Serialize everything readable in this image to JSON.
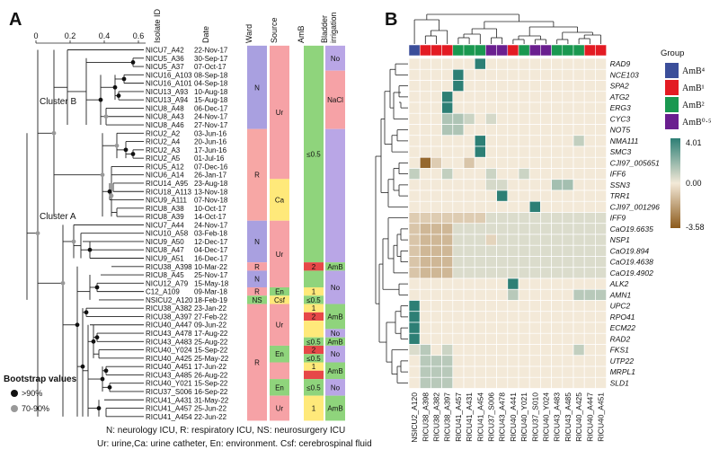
{
  "panelA": {
    "label": "A",
    "axis_ticks": [
      "0",
      "0.2",
      "0.4",
      "0.6"
    ],
    "cluster_b": "Cluster B",
    "cluster_a": "Cluster A",
    "headers": {
      "isolate": "Isolate ID",
      "date": "Date",
      "ward": "Ward",
      "source": "Source",
      "amb": "AmB",
      "bladder": "Bladder irrigation"
    },
    "isolates": [
      [
        "NICU7_A42",
        "22-Nov-17"
      ],
      [
        "NICU5_A36",
        "30-Sep-17"
      ],
      [
        "NICU5_A37",
        "07-Oct-17"
      ],
      [
        "NICU16_A103",
        "08-Sep-18"
      ],
      [
        "NICU16_A101",
        "04-Sep-18"
      ],
      [
        "NICU13_A93",
        "10-Aug-18"
      ],
      [
        "NICU13_A94",
        "15-Aug-18"
      ],
      [
        "NICU8_A48",
        "06-Dec-17"
      ],
      [
        "NICU8_A43",
        "24-Nov-17"
      ],
      [
        "NICU8_A46",
        "27-Nov-17"
      ],
      [
        "RICU2_A2",
        "03-Jun-16"
      ],
      [
        "RICU2_A4",
        "20-Jun-16"
      ],
      [
        "RICU2_A3",
        "17-Jun-16"
      ],
      [
        "RICU2_A5",
        "01-Jul-16"
      ],
      [
        "RICU5_A12",
        "07-Dec-16"
      ],
      [
        "NICU6_A14",
        "26-Jan-17"
      ],
      [
        "RICU14_A95",
        "23-Aug-18"
      ],
      [
        "RICU18_A113",
        "13-Nov-18"
      ],
      [
        "NICU9_A111",
        "07-Nov-18"
      ],
      [
        "RICU8_A38",
        "10-Oct-17"
      ],
      [
        "RICU8_A39",
        "14-Oct-17"
      ],
      [
        "NICU7_A44",
        "24-Nov-17"
      ],
      [
        "NICU10_A58",
        "03-Feb-18"
      ],
      [
        "NICU9_A50",
        "12-Dec-17"
      ],
      [
        "NICU8_A47",
        "04-Dec-17"
      ],
      [
        "NICU9_A51",
        "16-Dec-17"
      ],
      [
        "RICU38_A398",
        "10-Mar-22"
      ],
      [
        "RICU8_A45",
        "25-Nov-17"
      ],
      [
        "NICU12_A79",
        "15-May-18"
      ],
      [
        "C12_A109",
        "09-Mar-18"
      ],
      [
        "NSICU2_A120",
        "18-Feb-19"
      ],
      [
        "RICU38_A382",
        "23-Jan-22"
      ],
      [
        "RICU38_A397",
        "27-Feb-22"
      ],
      [
        "RICU40_A447",
        "09-Jun-22"
      ],
      [
        "RICU43_A478",
        "17-Aug-22"
      ],
      [
        "RICU43_A483",
        "25-Aug-22"
      ],
      [
        "RICU40_Y024",
        "15-Sep-22"
      ],
      [
        "RICU40_A425",
        "25-May-22"
      ],
      [
        "RICU40_A451",
        "17-Jun-22"
      ],
      [
        "RICU43_A485",
        "26-Aug-22"
      ],
      [
        "RICU40_Y021",
        "15-Sep-22"
      ],
      [
        "RICU37_S006",
        "16-Sep-22"
      ],
      [
        "RICU41_A431",
        "31-May-22"
      ],
      [
        "RICU41_A457",
        "25-Jun-22"
      ],
      [
        "RICU41_A454",
        "22-Jun-22"
      ]
    ],
    "ward_labels": {
      "n1": "N",
      "r1": "R",
      "n2": "N",
      "r2": "R",
      "n3": "N",
      "r3": "R",
      "en1": "R",
      "ns": "NS",
      "r4": "R"
    },
    "source_labels": {
      "ur1": "Ur",
      "ca": "Ca",
      "ur2": "Ur",
      "en1": "En",
      "csf": "Csf",
      "ur3": "Ur",
      "en2": "En",
      "en3": "En",
      "ur4": "Ur"
    },
    "amb_labels": {
      "le05": "≤0.5",
      "a2": "2",
      "a1": "1",
      "le05b": "≤0.5",
      "a1b": "1",
      "a2b": "2",
      "a2c": "2",
      "le05c": "≤0.5",
      "a1c": "1",
      "le05d": "≤0.5",
      "a1d": "1",
      "le05e": "≤0.5"
    },
    "bladder_labels": {
      "no1": "No",
      "nacl": "NaCl",
      "amb1": "AmB",
      "no2": "No",
      "amb2": "AmB",
      "no3": "No",
      "amb3": "AmB",
      "no4": "No",
      "amb4": "AmB",
      "no5": "No",
      "amb5": "AmB"
    },
    "bootstrap_title": "Bootstrap values",
    "bootstrap_hi": ">90%",
    "bootstrap_mid": "70-90%",
    "footnote1": "N: neurology ICU, R: respiratory ICU, NS: neurosurgery ICU",
    "footnote2": "Ur: urine,Ca: urine catheter, En: environment. Csf: cerebrospinal fluid"
  },
  "panelB": {
    "label": "B",
    "genes": [
      "RAD9",
      "NCE103",
      "SPA2",
      "ATG2",
      "ERG3",
      "CYC3",
      "NOT5",
      "NMA111",
      "SMC3",
      "CJI97_005651",
      "IFF6",
      "SSN3",
      "TRR1",
      "CJI97_001296",
      "IFF9",
      "CaO19.6635",
      "NSP1",
      "CaO19.894",
      "CaO19.4638",
      "CaO19.4902",
      "ALK2",
      "AMN1",
      "UPC2",
      "RPO41",
      "ECM22",
      "RAD2",
      "FKS1",
      "UTP22",
      "MRPL1",
      "SLD1"
    ],
    "isolates": [
      "NSICU2_A120",
      "RICU38_A398",
      "RICU38_A382",
      "RICU38_A397",
      "RICU41_A457",
      "RICU41_A431",
      "RICU41_A454",
      "RICU37_S006",
      "RICU43_A478",
      "RICU40_A441",
      "RICU40_Y021",
      "RICU37_S010",
      "RICU40_Y024",
      "RICU43_A483",
      "RICU43_A485",
      "RICU40_A425",
      "RICU40_A447",
      "RICU40_A451"
    ],
    "group_colors": [
      "#3b4e9a",
      "#e31b23",
      "#e31b23",
      "#e31b23",
      "#1a9850",
      "#1a9850",
      "#1a9850",
      "#6a1f8f",
      "#6a1f8f",
      "#e31b23",
      "#1a9850",
      "#6a1f8f",
      "#6a1f8f",
      "#1a9850",
      "#1a9850",
      "#1a9850",
      "#e31b23",
      "#e31b23"
    ],
    "legend_title": "Group",
    "legend": [
      {
        "label": "AmB⁴",
        "color": "#3b4e9a"
      },
      {
        "label": "AmB¹",
        "color": "#e31b23"
      },
      {
        "label": "AmB²",
        "color": "#1a9850"
      },
      {
        "label": "AmB⁰·⁵",
        "color": "#6a1f8f"
      }
    ],
    "scale_max": "4.01",
    "scale_mid": "0.00",
    "scale_min": "-3.58",
    "colors": {
      "high": "#2d7f75",
      "mid": "#f3e9d8",
      "low": "#8c5a1b"
    }
  }
}
